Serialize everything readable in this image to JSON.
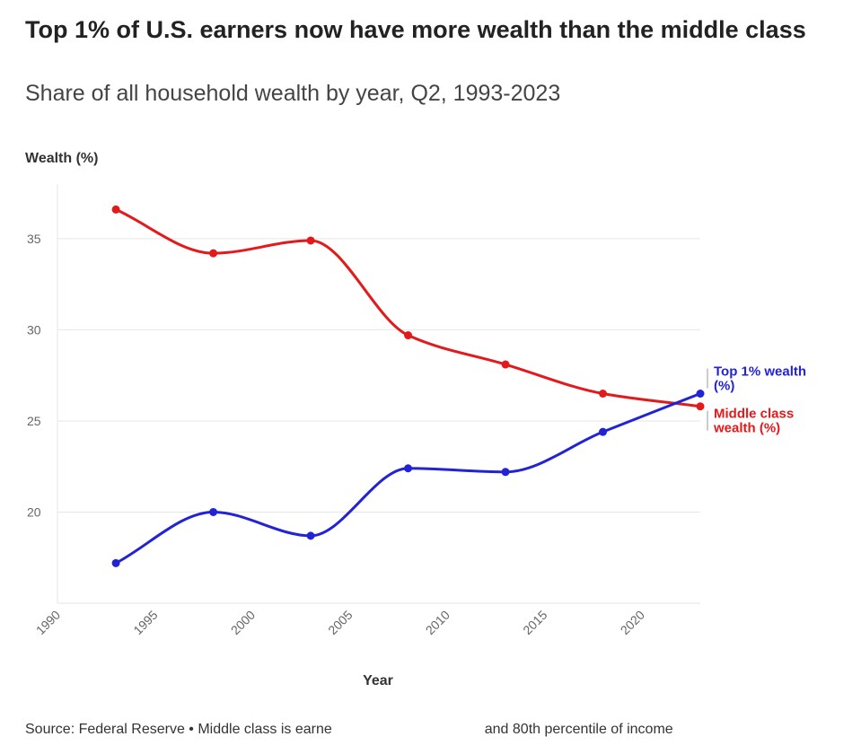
{
  "title": "Top 1% of U.S. earners now have more wealth than the middle class",
  "subtitle": "Share of all household wealth by year, Q2, 1993-2023",
  "footer": {
    "left": "Source: Federal Reserve • Middle class is earne",
    "right": "and 80th percentile of income"
  },
  "chart_data": {
    "type": "line",
    "title": "Top 1% of U.S. earners now have more wealth than the middle class",
    "subtitle": "Share of all household wealth by year, Q2, 1993-2023",
    "xlabel": "Year",
    "ylabel": "Wealth (%)",
    "xlim": [
      1990,
      2023
    ],
    "ylim": [
      15,
      38
    ],
    "x_ticks": [
      1990,
      1995,
      2000,
      2005,
      2010,
      2015,
      2020
    ],
    "y_ticks": [
      20,
      25,
      30,
      35
    ],
    "grid": true,
    "x": [
      1993,
      1998,
      2003,
      2008,
      2013,
      2018,
      2023
    ],
    "series": [
      {
        "name": "Middle class wealth (%)",
        "label_lines": [
          "Middle class",
          "wealth (%)"
        ],
        "color": "#e31a1c",
        "values": [
          36.6,
          34.2,
          34.9,
          29.7,
          28.1,
          26.5,
          25.8
        ]
      },
      {
        "name": "Top 1% wealth (%)",
        "label_lines": [
          "Top 1% wealth",
          "(%)"
        ],
        "color": "#2222d6",
        "values": [
          17.2,
          20.0,
          18.7,
          22.4,
          22.2,
          24.4,
          26.5
        ]
      }
    ]
  }
}
